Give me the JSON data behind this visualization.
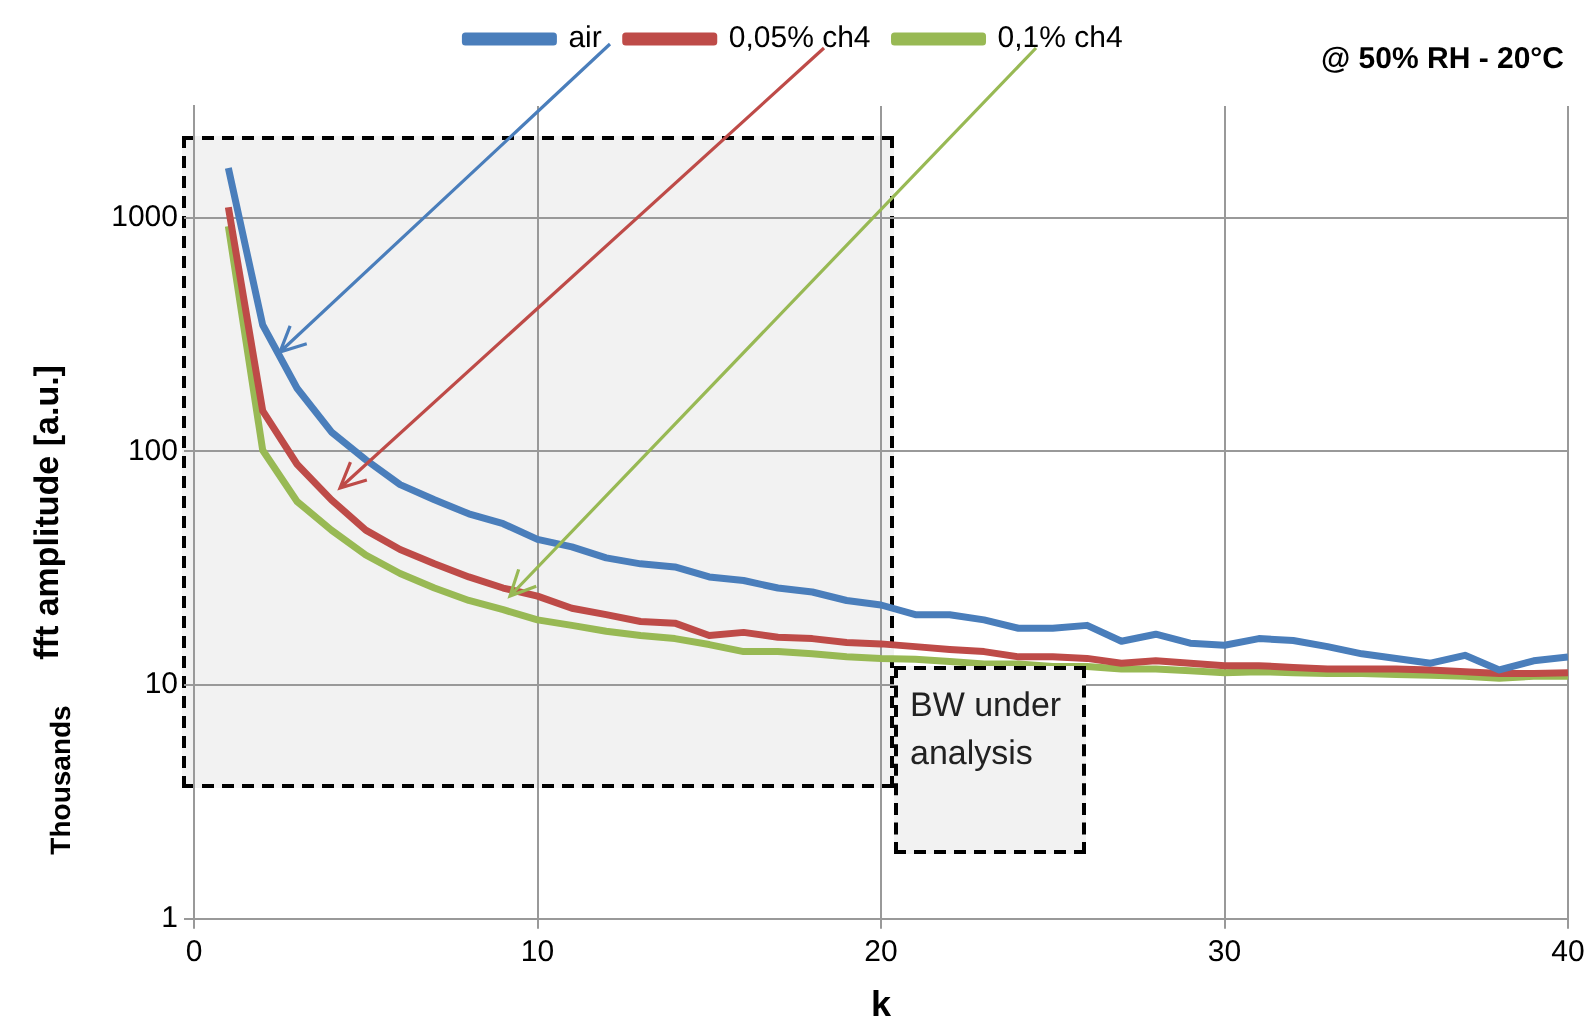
{
  "chart_data": {
    "type": "line",
    "subtitle": "@ 50% RH - 20°C",
    "xlabel": "k",
    "ylabel": "fft amplitude [a.u.]",
    "x": [
      1,
      2,
      3,
      4,
      5,
      6,
      7,
      8,
      9,
      10,
      11,
      12,
      13,
      14,
      15,
      16,
      17,
      18,
      19,
      20,
      21,
      22,
      23,
      24,
      25,
      26,
      27,
      28,
      29,
      30,
      31,
      32,
      33,
      34,
      35,
      36,
      37,
      38,
      39,
      40
    ],
    "series": [
      {
        "name": "air",
        "color": "#4a7ebb",
        "values": [
          1630,
          347,
          186,
          121,
          92,
          72,
          62,
          54,
          49,
          42,
          39,
          35,
          33,
          32,
          29,
          28,
          26,
          25,
          23,
          22,
          20,
          20,
          19,
          17.5,
          17.5,
          18,
          15.4,
          16.5,
          15.1,
          14.8,
          15.8,
          15.5,
          14.6,
          13.6,
          13,
          12.4,
          13.4,
          11.6,
          12.7,
          13.2
        ]
      },
      {
        "name": "0,05% ch4",
        "color": "#be4b48",
        "values": [
          1107,
          149,
          88,
          62,
          46,
          38,
          33,
          29,
          26,
          24,
          21.3,
          20,
          18.7,
          18.4,
          16.3,
          16.8,
          16,
          15.8,
          15.2,
          15,
          14.6,
          14.2,
          13.9,
          13.2,
          13.2,
          13,
          12.4,
          12.7,
          12.4,
          12.1,
          12.1,
          11.9,
          11.7,
          11.7,
          11.7,
          11.6,
          11.4,
          11.2,
          11.2,
          11.3
        ]
      },
      {
        "name": "0,1% ch4",
        "color": "#98b954",
        "values": [
          919,
          101,
          61,
          46,
          36,
          30,
          26,
          23,
          21,
          19,
          18,
          17,
          16.3,
          15.8,
          14.9,
          13.9,
          13.9,
          13.6,
          13.2,
          13,
          12.9,
          12.6,
          12.3,
          12.3,
          12,
          12,
          11.7,
          11.7,
          11.5,
          11.3,
          11.4,
          11.3,
          11.2,
          11.2,
          11.1,
          11,
          10.9,
          10.7,
          10.9,
          10.9
        ]
      }
    ],
    "xlim": [
      0,
      40
    ],
    "xticks": [
      0,
      10,
      20,
      30,
      40
    ],
    "ylim": [
      1,
      3000
    ],
    "yticks": [
      1,
      10,
      100,
      1000
    ],
    "log": "y",
    "grid": true,
    "legend": "top",
    "marker": "none",
    "line_style": "solid",
    "annotations": [
      "BW under analysis",
      "Thousands"
    ]
  }
}
